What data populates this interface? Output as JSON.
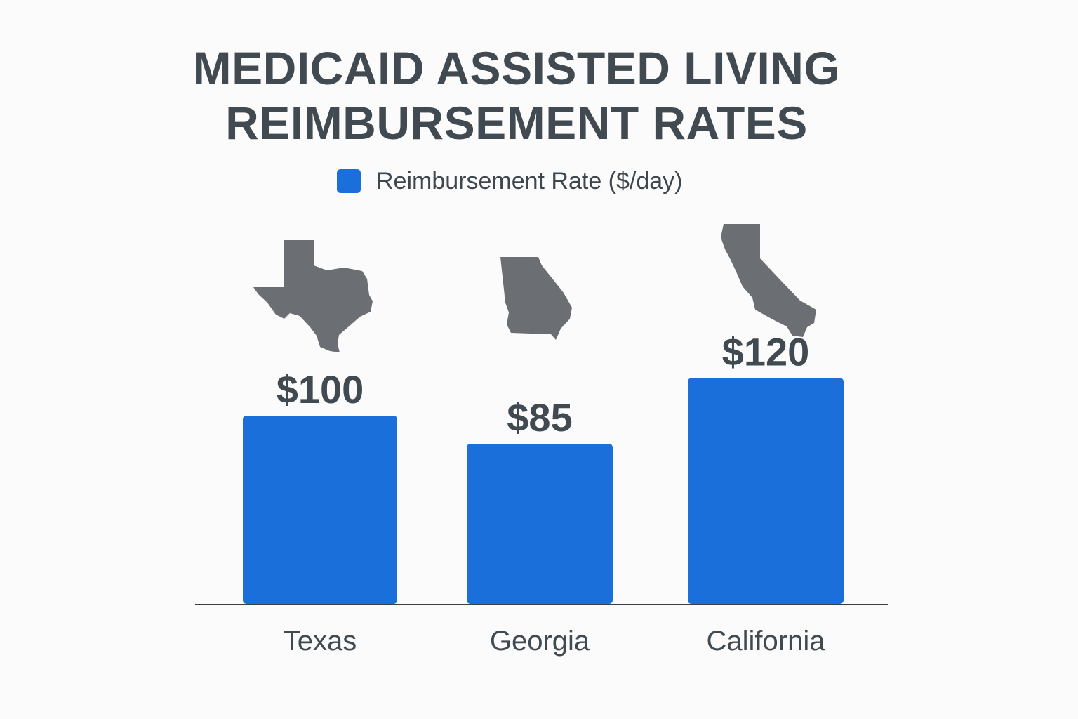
{
  "chart_data": {
    "type": "bar",
    "title_lines": [
      "MEDICAID ASSISTED LIVING",
      "REIMBURSEMENT RATES"
    ],
    "categories": [
      "Texas",
      "Georgia",
      "California"
    ],
    "series": [
      {
        "name": "Reimbursement Rate ($/day)",
        "values": [
          100,
          85,
          120
        ],
        "value_labels": [
          "$100",
          "$85",
          "$120"
        ]
      }
    ],
    "icons": [
      "texas-shape-icon",
      "georgia-shape-icon",
      "california-shape-icon"
    ],
    "legend_position": "top-center",
    "xlabel": "",
    "ylabel": "",
    "grid": false
  },
  "colors": {
    "bar": "#1b6fdb",
    "text": "#414a50",
    "icon": "#6b6f74",
    "axis": "#3a3f44",
    "background": "#fbfbfb"
  }
}
